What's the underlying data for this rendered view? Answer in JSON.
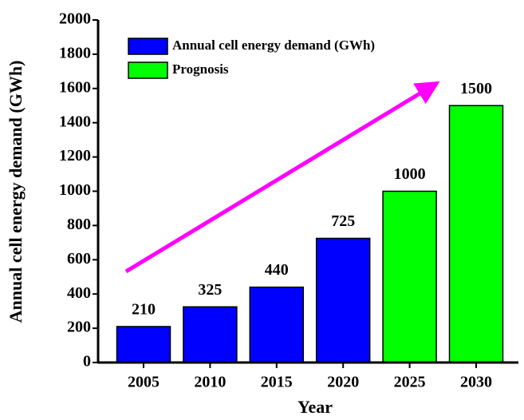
{
  "chart_data": {
    "type": "bar",
    "categories": [
      "2005",
      "2010",
      "2015",
      "2020",
      "2025",
      "2030"
    ],
    "series": [
      {
        "name": "Annual cell energy demand (GWh)",
        "color": "#0000ff",
        "values": [
          210,
          325,
          440,
          725,
          null,
          null
        ]
      },
      {
        "name": "Prognosis",
        "color": "#00ff00",
        "values": [
          null,
          null,
          null,
          null,
          1000,
          1500
        ]
      }
    ],
    "x_label": "Year",
    "y_label": "Annual cell energy demand (GWh)",
    "ylim": [
      0,
      2000
    ],
    "yticks": [
      0,
      200,
      400,
      600,
      800,
      1000,
      1200,
      1400,
      1600,
      1800,
      2000
    ],
    "legend": "upper left",
    "data_labels": true
  }
}
